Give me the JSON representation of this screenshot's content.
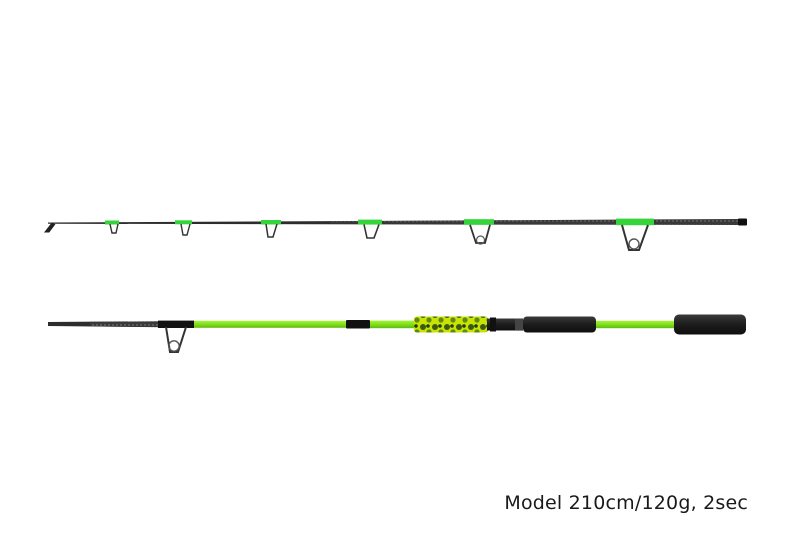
{
  "caption": "Model 210cm/120g, 2sec",
  "colors": {
    "background": "#ffffff",
    "blank": "#2b2b2b",
    "accent_green": "#35d43a",
    "lime_blank": "#7fe01a",
    "grip": "#1f1f1f",
    "camo_a": "#3b5a16",
    "camo_b": "#c9e400"
  }
}
